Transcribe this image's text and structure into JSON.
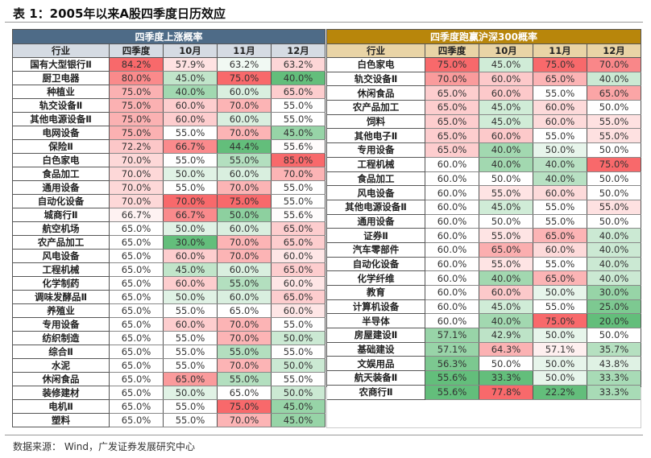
{
  "title": "表 1：2005年以来A股四季度日历效应",
  "source": "数据来源： Wind，广发证券发展研究中心",
  "colors": {
    "left_header": "#4e6b87",
    "right_header": "#b8860b",
    "high": "#f8696b",
    "mid": "#ffffff",
    "low": "#63be7b"
  },
  "left": {
    "caption": "四季度上涨概率",
    "columns": [
      "行业",
      "四季度",
      "10月",
      "11月",
      "12月"
    ],
    "rows": [
      [
        "国有大型银行Ⅱ",
        "84.2%",
        "57.9%",
        "63.2%",
        "63.2%"
      ],
      [
        "厨卫电器",
        "80.0%",
        "45.0%",
        "75.0%",
        "40.0%"
      ],
      [
        "种植业",
        "75.0%",
        "40.0%",
        "60.0%",
        "65.0%"
      ],
      [
        "轨交设备Ⅱ",
        "75.0%",
        "60.0%",
        "70.0%",
        "55.0%"
      ],
      [
        "其他电源设备Ⅱ",
        "75.0%",
        "60.0%",
        "60.0%",
        "55.0%"
      ],
      [
        "电网设备",
        "75.0%",
        "55.0%",
        "70.0%",
        "45.0%"
      ],
      [
        "保险Ⅱ",
        "72.2%",
        "66.7%",
        "44.4%",
        "55.6%"
      ],
      [
        "白色家电",
        "70.0%",
        "55.0%",
        "55.0%",
        "85.0%"
      ],
      [
        "食品加工",
        "70.0%",
        "50.0%",
        "60.0%",
        "70.0%"
      ],
      [
        "通用设备",
        "70.0%",
        "55.0%",
        "70.0%",
        "55.0%"
      ],
      [
        "自动化设备",
        "70.0%",
        "70.0%",
        "75.0%",
        "55.0%"
      ],
      [
        "城商行Ⅱ",
        "66.7%",
        "66.7%",
        "50.0%",
        "55.6%"
      ],
      [
        "航空机场",
        "65.0%",
        "50.0%",
        "60.0%",
        "65.0%"
      ],
      [
        "农产品加工",
        "65.0%",
        "30.0%",
        "70.0%",
        "65.0%"
      ],
      [
        "风电设备",
        "65.0%",
        "60.0%",
        "70.0%",
        "60.0%"
      ],
      [
        "工程机械",
        "65.0%",
        "45.0%",
        "60.0%",
        "65.0%"
      ],
      [
        "化学制药",
        "65.0%",
        "60.0%",
        "55.0%",
        "60.0%"
      ],
      [
        "调味发酵品Ⅱ",
        "65.0%",
        "50.0%",
        "60.0%",
        "65.0%"
      ],
      [
        "养殖业",
        "65.0%",
        "55.0%",
        "65.0%",
        "60.0%"
      ],
      [
        "专用设备",
        "65.0%",
        "60.0%",
        "70.0%",
        "55.0%"
      ],
      [
        "纺织制造",
        "65.0%",
        "55.0%",
        "70.0%",
        "50.0%"
      ],
      [
        "综合Ⅱ",
        "65.0%",
        "55.0%",
        "55.0%",
        "55.0%"
      ],
      [
        "水泥",
        "65.0%",
        "55.0%",
        "70.0%",
        "50.0%"
      ],
      [
        "休闲食品",
        "65.0%",
        "65.0%",
        "55.0%",
        "55.0%"
      ],
      [
        "装修建材",
        "65.0%",
        "50.0%",
        "65.0%",
        "50.0%"
      ],
      [
        "电机Ⅱ",
        "65.0%",
        "55.0%",
        "75.0%",
        "45.0%"
      ],
      [
        "塑料",
        "65.0%",
        "55.0%",
        "70.0%",
        "45.0%"
      ]
    ]
  },
  "right": {
    "caption": "四季度跑赢沪深300概率",
    "columns": [
      "行业",
      "四季度",
      "10月",
      "11月",
      "12月"
    ],
    "rows": [
      [
        "白色家电",
        "75.0%",
        "45.0%",
        "75.0%",
        "70.0%"
      ],
      [
        "轨交设备Ⅱ",
        "70.0%",
        "60.0%",
        "65.0%",
        "40.0%"
      ],
      [
        "休闲食品",
        "65.0%",
        "60.0%",
        "55.0%",
        "65.0%"
      ],
      [
        "农产品加工",
        "65.0%",
        "45.0%",
        "60.0%",
        "50.0%"
      ],
      [
        "饲料",
        "65.0%",
        "45.0%",
        "60.0%",
        "55.0%"
      ],
      [
        "其他电子Ⅱ",
        "65.0%",
        "60.0%",
        "55.0%",
        "55.0%"
      ],
      [
        "专用设备",
        "65.0%",
        "40.0%",
        "50.0%",
        "50.0%"
      ],
      [
        "工程机械",
        "60.0%",
        "40.0%",
        "40.0%",
        "75.0%"
      ],
      [
        "食品加工",
        "60.0%",
        "50.0%",
        "40.0%",
        "50.0%"
      ],
      [
        "风电设备",
        "60.0%",
        "55.0%",
        "60.0%",
        "50.0%"
      ],
      [
        "其他电源设备Ⅱ",
        "60.0%",
        "45.0%",
        "55.0%",
        "55.0%"
      ],
      [
        "通用设备",
        "60.0%",
        "50.0%",
        "55.0%",
        "50.0%"
      ],
      [
        "证券Ⅱ",
        "60.0%",
        "55.0%",
        "65.0%",
        "40.0%"
      ],
      [
        "汽车零部件",
        "60.0%",
        "65.0%",
        "60.0%",
        "40.0%"
      ],
      [
        "自动化设备",
        "60.0%",
        "55.0%",
        "55.0%",
        "40.0%"
      ],
      [
        "化学纤维",
        "60.0%",
        "40.0%",
        "65.0%",
        "40.0%"
      ],
      [
        "教育",
        "60.0%",
        "60.0%",
        "50.0%",
        "30.0%"
      ],
      [
        "计算机设备",
        "60.0%",
        "45.0%",
        "55.0%",
        "25.0%"
      ],
      [
        "半导体",
        "60.0%",
        "40.0%",
        "75.0%",
        "20.0%"
      ],
      [
        "房屋建设Ⅱ",
        "57.1%",
        "42.9%",
        "50.0%",
        "50.0%"
      ],
      [
        "基础建设",
        "57.1%",
        "64.3%",
        "57.1%",
        "35.7%"
      ],
      [
        "文娱用品",
        "56.3%",
        "50.0%",
        "50.0%",
        "43.8%"
      ],
      [
        "航天装备Ⅱ",
        "55.6%",
        "33.3%",
        "50.0%",
        "33.3%"
      ],
      [
        "农商行Ⅱ",
        "55.6%",
        "77.8%",
        "22.2%",
        "33.3%"
      ]
    ]
  }
}
